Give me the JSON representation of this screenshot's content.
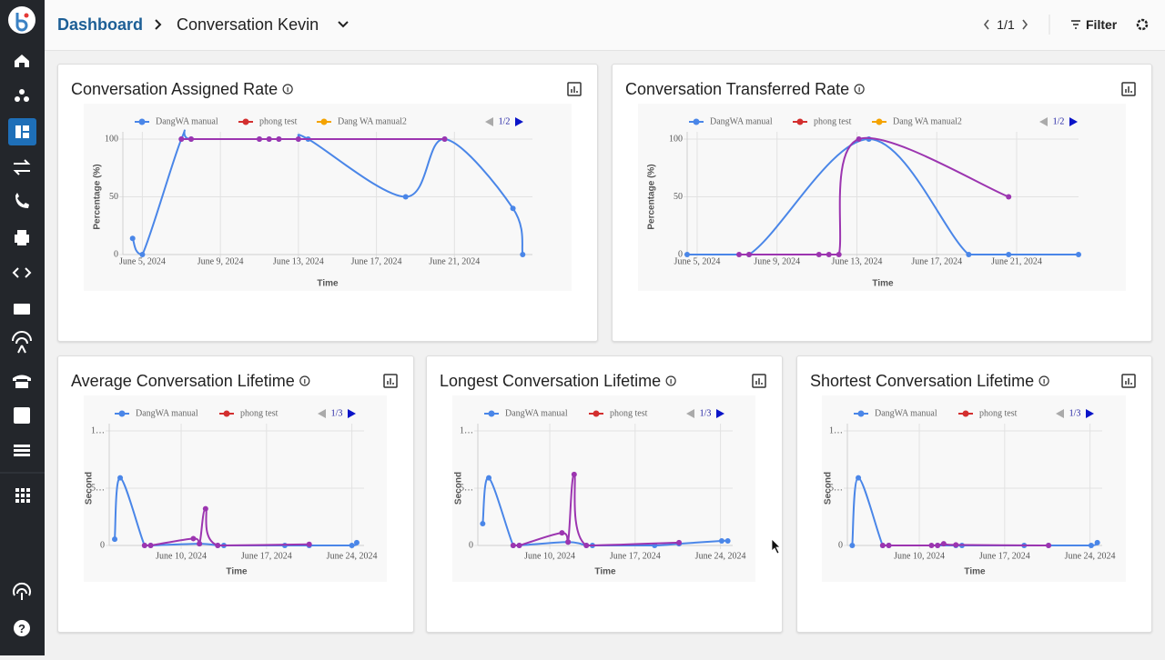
{
  "header": {
    "breadcrumb": "Dashboard",
    "title": "Conversation Kevin",
    "pagination": "1/1",
    "filter": "Filter"
  },
  "chart_data": [
    {
      "type": "line",
      "title": "Conversation Assigned Rate",
      "y_label": "Percentage (%)",
      "x_label": "Time",
      "legend_page": "1/2",
      "xlim": [
        4,
        25
      ],
      "xticks": [
        {
          "value": 5,
          "label": "June 5, 2024"
        },
        {
          "value": 9,
          "label": "June 9, 2024"
        },
        {
          "value": 13,
          "label": "June 13, 2024"
        },
        {
          "value": 17,
          "label": "June 17, 2024"
        },
        {
          "value": 21,
          "label": "June 21, 2024"
        }
      ],
      "ylim": [
        0,
        100
      ],
      "yticks": [
        0,
        50,
        100
      ],
      "series": [
        {
          "name": "DangWA manual",
          "color": "#4a86e8",
          "line_color": "#4a86e8",
          "x": [
            4.5,
            5,
            7,
            7.5,
            11,
            11.5,
            12,
            13,
            13.5,
            18.5,
            20.5,
            24,
            24.5
          ],
          "values": [
            14,
            0,
            100,
            100,
            100,
            100,
            100,
            100,
            100,
            50,
            100,
            40,
            0
          ]
        },
        {
          "name": "phong test",
          "color": "#d32f2f",
          "line_color": "#9c35b0",
          "x": [
            7,
            7.5,
            11,
            11.5,
            12,
            13,
            20.5
          ],
          "values": [
            100,
            100,
            100,
            100,
            100,
            100,
            100
          ]
        },
        {
          "name": "Dang WA manual2",
          "color": "#f4a300",
          "line_color": "#f4a300",
          "x": [],
          "values": []
        }
      ]
    },
    {
      "type": "line",
      "title": "Conversation Transferred Rate",
      "y_label": "Percentage (%)",
      "x_label": "Time",
      "legend_page": "1/2",
      "xlim": [
        4.5,
        24.1
      ],
      "xticks": [
        {
          "value": 5,
          "label": "June 5, 2024"
        },
        {
          "value": 9,
          "label": "June 9, 2024"
        },
        {
          "value": 13,
          "label": "June 13, 2024"
        },
        {
          "value": 17,
          "label": "June 17, 2024"
        },
        {
          "value": 21,
          "label": "June 21, 2024"
        }
      ],
      "ylim": [
        0,
        100
      ],
      "yticks": [
        0,
        50,
        100
      ],
      "series": [
        {
          "name": "DangWA manual",
          "color": "#4a86e8",
          "line_color": "#4a86e8",
          "x": [
            4.5,
            7.6,
            13.6,
            18.6,
            20.6,
            24.1
          ],
          "values": [
            0,
            0,
            100,
            0,
            0,
            0
          ]
        },
        {
          "name": "phong test",
          "color": "#d32f2f",
          "line_color": "#9c35b0",
          "x": [
            7.1,
            7.6,
            11.1,
            11.6,
            12.1,
            13.1,
            20.6
          ],
          "values": [
            0,
            0,
            0,
            0,
            0,
            100,
            50
          ]
        },
        {
          "name": "Dang WA manual2",
          "color": "#f4a300",
          "line_color": "#f4a300",
          "x": [],
          "values": []
        }
      ]
    },
    {
      "type": "line",
      "title": "Average Conversation Lifetime",
      "y_label": "Second",
      "x_label": "Time",
      "legend_page": "1/3",
      "xlim": [
        4.1,
        25
      ],
      "xticks": [
        {
          "value": 10,
          "label": "June 10, 2024"
        },
        {
          "value": 17,
          "label": "June 17, 2024"
        },
        {
          "value": 24,
          "label": "June 24, 2024"
        }
      ],
      "ylim": [
        0,
        10
      ],
      "yticks": [
        0,
        {
          "value": 5,
          "label": "5…"
        },
        {
          "value": 10,
          "label": "1…"
        }
      ],
      "series": [
        {
          "name": "DangWA manual",
          "color": "#4a86e8",
          "line_color": "#4a86e8",
          "x": [
            4.55,
            5,
            7,
            7.5,
            11.5,
            13,
            13.5,
            18.5,
            20.5,
            24,
            24.4
          ],
          "values": [
            0.55,
            5.9,
            0,
            0,
            0.15,
            0,
            0,
            0,
            0,
            0,
            0.25
          ]
        },
        {
          "name": "phong test",
          "color": "#d32f2f",
          "line_color": "#9c35b0",
          "x": [
            7,
            7.5,
            11,
            11.5,
            12,
            13,
            20.5
          ],
          "values": [
            0,
            0,
            0.6,
            0.15,
            3.2,
            0,
            0.1
          ]
        }
      ]
    },
    {
      "type": "line",
      "title": "Longest Conversation Lifetime",
      "y_label": "Second",
      "x_label": "Time",
      "legend_page": "1/3",
      "xlim": [
        4.1,
        25
      ],
      "xticks": [
        {
          "value": 10,
          "label": "June 10, 2024"
        },
        {
          "value": 17,
          "label": "June 17, 2024"
        },
        {
          "value": 24,
          "label": "June 24, 2024"
        }
      ],
      "ylim": [
        0,
        10
      ],
      "yticks": [
        0,
        {
          "value": 5,
          "label": "5…"
        },
        {
          "value": 10,
          "label": "1…"
        }
      ],
      "series": [
        {
          "name": "DangWA manual",
          "color": "#4a86e8",
          "line_color": "#4a86e8",
          "x": [
            4.5,
            5,
            7,
            7.5,
            11.5,
            13,
            13.5,
            18.6,
            20.6,
            24.1,
            24.6
          ],
          "values": [
            1.9,
            5.9,
            0,
            0,
            0.3,
            0,
            0,
            0,
            0.15,
            0.4,
            0.4
          ]
        },
        {
          "name": "phong test",
          "color": "#d32f2f",
          "line_color": "#9c35b0",
          "x": [
            7,
            7.5,
            11,
            11.5,
            12,
            13,
            20.6
          ],
          "values": [
            0,
            0,
            1.1,
            0.3,
            6.2,
            0,
            0.25
          ]
        }
      ]
    },
    {
      "type": "line",
      "title": "Shortest Conversation Lifetime",
      "y_label": "Second",
      "x_label": "Time",
      "legend_page": "1/3",
      "xlim": [
        4.1,
        25
      ],
      "xticks": [
        {
          "value": 10,
          "label": "June 10, 2024"
        },
        {
          "value": 17,
          "label": "June 17, 2024"
        },
        {
          "value": 24,
          "label": "June 24, 2024"
        }
      ],
      "ylim": [
        0,
        10
      ],
      "yticks": [
        0,
        {
          "value": 5,
          "label": "5…"
        },
        {
          "value": 10,
          "label": "1…"
        }
      ],
      "series": [
        {
          "name": "DangWA manual",
          "color": "#4a86e8",
          "line_color": "#4a86e8",
          "x": [
            4.5,
            5,
            7,
            7.5,
            11.5,
            13,
            13.5,
            18.6,
            20.6,
            24.1,
            24.6
          ],
          "values": [
            0,
            5.9,
            0,
            0,
            0,
            0,
            0,
            0,
            0,
            0,
            0.25
          ]
        },
        {
          "name": "phong test",
          "color": "#d32f2f",
          "line_color": "#9c35b0",
          "x": [
            7,
            7.5,
            11,
            11.5,
            12,
            13,
            20.6
          ],
          "values": [
            0,
            0,
            0,
            0,
            0.15,
            0.05,
            0
          ]
        }
      ]
    }
  ]
}
